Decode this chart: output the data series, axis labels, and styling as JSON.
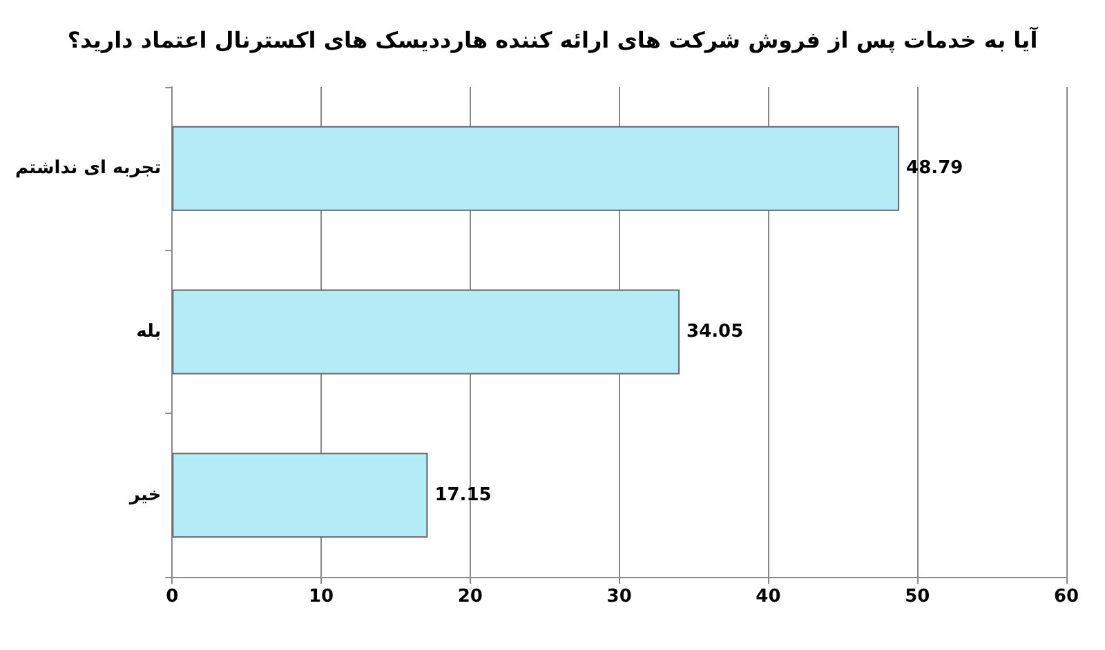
{
  "chart_data": {
    "type": "bar",
    "orientation": "horizontal",
    "title": "آیا به خدمات پس از فروش شرکت های ارائه کننده هارددیسک های اکسترنال اعتماد دارید؟",
    "categories": [
      "تجربه ای نداشتم",
      "بله",
      "خیر"
    ],
    "values": [
      48.79,
      34.05,
      17.15
    ],
    "color": "#b3ecf7",
    "xlim": [
      0,
      60
    ],
    "xticks": [
      0,
      10,
      20,
      30,
      40,
      50,
      60
    ],
    "grid": "x",
    "data_labels": true
  }
}
